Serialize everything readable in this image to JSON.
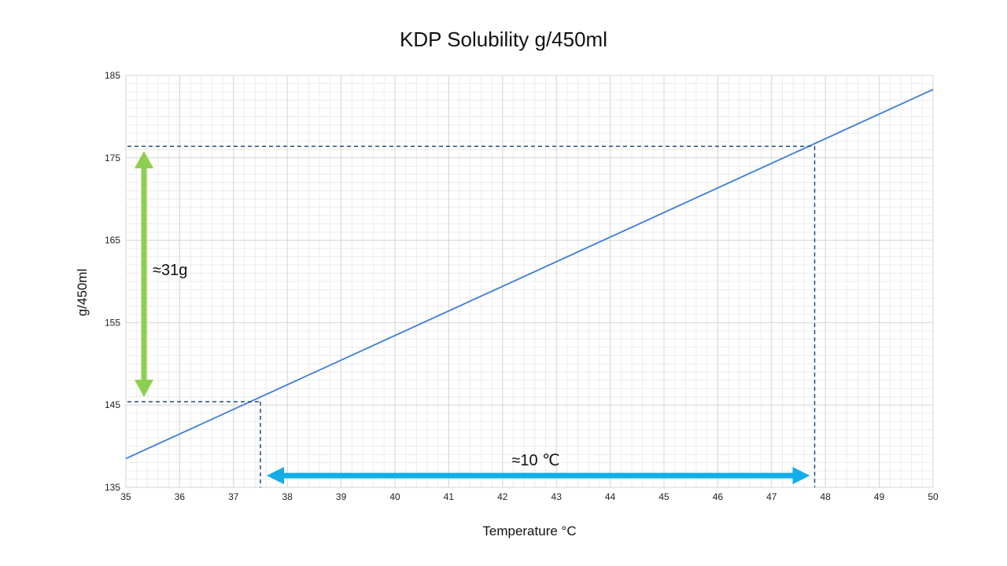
{
  "chart_data": {
    "type": "line",
    "title": "KDP Solubility g/450ml",
    "xlabel": "Temperature  °C",
    "ylabel": "g/450ml",
    "xlim": [
      35,
      50
    ],
    "ylim": [
      135,
      185
    ],
    "x_ticks": [
      "35",
      "36",
      "37",
      "38",
      "39",
      "40",
      "41",
      "42",
      "43",
      "44",
      "45",
      "46",
      "47",
      "48",
      "49",
      "50"
    ],
    "y_ticks": [
      "135",
      "145",
      "155",
      "165",
      "175",
      "185"
    ],
    "grid": true,
    "series": [
      {
        "x": [
          35,
          50
        ],
        "y": [
          138.5,
          183.3
        ]
      }
    ],
    "reference_points": [
      {
        "x": 37.5,
        "y": 145.4
      },
      {
        "x": 47.8,
        "y": 176.4
      }
    ],
    "annotations": {
      "vertical": {
        "text": "≈31g",
        "from": 145.4,
        "to": 176.4
      },
      "horizontal": {
        "text": "≈10 ℃",
        "from": 37.5,
        "to": 47.8
      }
    },
    "colors": {
      "line": "#3c7ddb",
      "reference": "#1f4e79",
      "vertical_arrow": "#8fcf4f",
      "horizontal_arrow": "#12aee8",
      "major_grid": "#d4d4d4",
      "minor_grid": "#ececec"
    }
  }
}
